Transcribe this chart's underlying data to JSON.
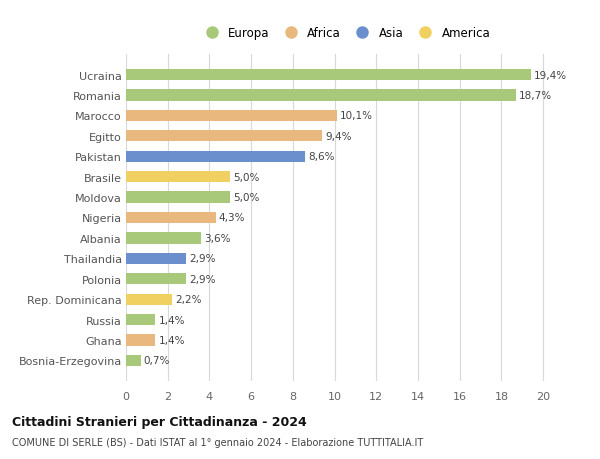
{
  "countries": [
    "Ucraina",
    "Romania",
    "Marocco",
    "Egitto",
    "Pakistan",
    "Brasile",
    "Moldova",
    "Nigeria",
    "Albania",
    "Thailandia",
    "Polonia",
    "Rep. Dominicana",
    "Russia",
    "Ghana",
    "Bosnia-Erzegovina"
  ],
  "values": [
    19.4,
    18.7,
    10.1,
    9.4,
    8.6,
    5.0,
    5.0,
    4.3,
    3.6,
    2.9,
    2.9,
    2.2,
    1.4,
    1.4,
    0.7
  ],
  "labels": [
    "19,4%",
    "18,7%",
    "10,1%",
    "9,4%",
    "8,6%",
    "5,0%",
    "5,0%",
    "4,3%",
    "3,6%",
    "2,9%",
    "2,9%",
    "2,2%",
    "1,4%",
    "1,4%",
    "0,7%"
  ],
  "continents": [
    "Europa",
    "Europa",
    "Africa",
    "Africa",
    "Asia",
    "America",
    "Europa",
    "Africa",
    "Europa",
    "Asia",
    "Europa",
    "America",
    "Europa",
    "Africa",
    "Europa"
  ],
  "continent_colors": {
    "Europa": "#a8c87a",
    "Africa": "#e8b87e",
    "Asia": "#6b8fcc",
    "America": "#f0d060"
  },
  "legend_order": [
    "Europa",
    "Africa",
    "Asia",
    "America"
  ],
  "title": "Cittadini Stranieri per Cittadinanza - 2024",
  "subtitle": "COMUNE DI SERLE (BS) - Dati ISTAT al 1° gennaio 2024 - Elaborazione TUTTITALIA.IT",
  "xlim": [
    0,
    21
  ],
  "xticks": [
    0,
    2,
    4,
    6,
    8,
    10,
    12,
    14,
    16,
    18,
    20
  ],
  "background_color": "#ffffff",
  "grid_color": "#d8d8d8",
  "bar_height": 0.55
}
